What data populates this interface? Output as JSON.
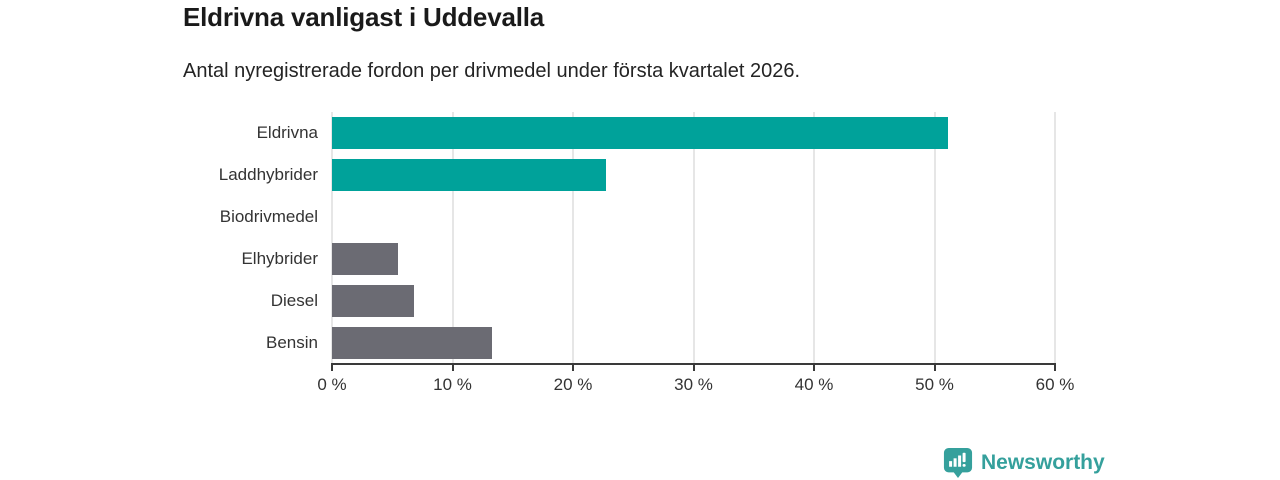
{
  "chart_data": {
    "type": "bar",
    "orientation": "horizontal",
    "title": "Eldrivna vanligast i Uddevalla",
    "subtitle": "Antal nyregistrerade fordon per drivmedel under första kvartalet 2026.",
    "categories": [
      "Eldrivna",
      "Laddhybrider",
      "Biodrivmedel",
      "Elhybrider",
      "Diesel",
      "Bensin"
    ],
    "values": [
      51.1,
      22.7,
      0,
      5.5,
      6.8,
      13.3
    ],
    "unit": "%",
    "bar_colors": [
      "#00a29a",
      "#00a29a",
      "#6b6b73",
      "#6b6b73",
      "#6b6b73",
      "#6b6b73"
    ],
    "xlabel": "",
    "ylabel": "",
    "xlim": [
      0,
      60
    ],
    "xticks": [
      0,
      10,
      20,
      30,
      40,
      50,
      60
    ],
    "xtick_labels": [
      "0 %",
      "10 %",
      "20 %",
      "30 %",
      "40 %",
      "50 %",
      "60 %"
    ],
    "grid": "vertical gridlines on",
    "legend": "none"
  },
  "footer": {
    "brand": "Newsworthy"
  },
  "colors": {
    "bar_teal": "#00a29a",
    "bar_gray": "#6b6b73",
    "logo_teal": "#35a09c",
    "gridline": "#e6e6e6",
    "axis_line": "#3a3a3a",
    "title_text": "#1a1a1a",
    "axis_text": "#333333",
    "background": "#ffffff"
  }
}
